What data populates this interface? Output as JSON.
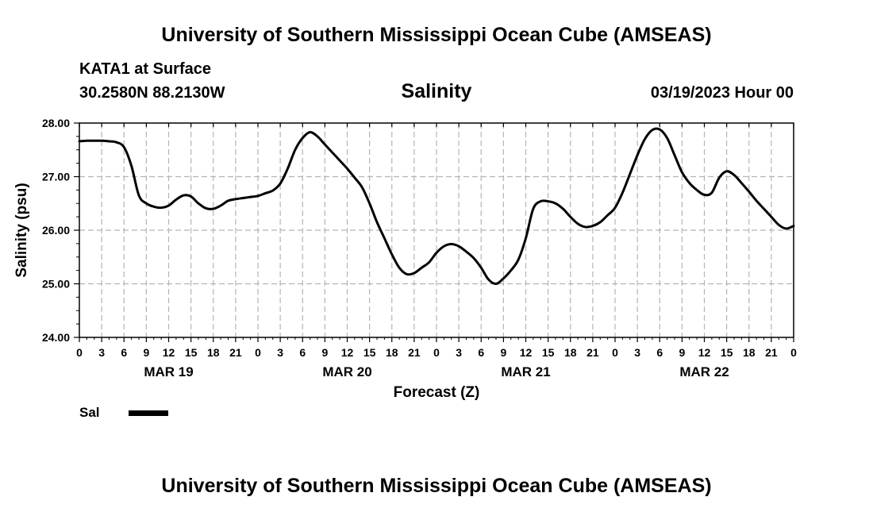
{
  "header": {
    "title": "University of Southern Mississippi Ocean Cube (AMSEAS)",
    "station": "KATA1 at Surface",
    "coords": "30.2580N  88.2130W",
    "variable": "Salinity",
    "run_time": "03/19/2023 Hour 00"
  },
  "footer": {
    "title": "University of Southern Mississippi Ocean Cube (AMSEAS)"
  },
  "legend": {
    "label": "Sal",
    "color": "#000000"
  },
  "chart_data": {
    "type": "line",
    "title": "Salinity",
    "xlabel": "Forecast (Z)",
    "ylabel": "Salinity (psu)",
    "ylim": [
      24.0,
      28.0
    ],
    "xlim": [
      0,
      96
    ],
    "yticks": [
      "24.00",
      "25.00",
      "26.00",
      "27.00",
      "28.00"
    ],
    "xticks": [
      {
        "hour": 0,
        "label": "0"
      },
      {
        "hour": 3,
        "label": "3"
      },
      {
        "hour": 6,
        "label": "6"
      },
      {
        "hour": 9,
        "label": "9"
      },
      {
        "hour": 12,
        "label": "12"
      },
      {
        "hour": 15,
        "label": "15"
      },
      {
        "hour": 18,
        "label": "18"
      },
      {
        "hour": 21,
        "label": "21"
      },
      {
        "hour": 24,
        "label": "0"
      },
      {
        "hour": 27,
        "label": "3"
      },
      {
        "hour": 30,
        "label": "6"
      },
      {
        "hour": 33,
        "label": "9"
      },
      {
        "hour": 36,
        "label": "12"
      },
      {
        "hour": 39,
        "label": "15"
      },
      {
        "hour": 42,
        "label": "18"
      },
      {
        "hour": 45,
        "label": "21"
      },
      {
        "hour": 48,
        "label": "0"
      },
      {
        "hour": 51,
        "label": "3"
      },
      {
        "hour": 54,
        "label": "6"
      },
      {
        "hour": 57,
        "label": "9"
      },
      {
        "hour": 60,
        "label": "12"
      },
      {
        "hour": 63,
        "label": "15"
      },
      {
        "hour": 66,
        "label": "18"
      },
      {
        "hour": 69,
        "label": "21"
      },
      {
        "hour": 72,
        "label": "0"
      },
      {
        "hour": 75,
        "label": "3"
      },
      {
        "hour": 78,
        "label": "6"
      },
      {
        "hour": 81,
        "label": "9"
      },
      {
        "hour": 84,
        "label": "12"
      },
      {
        "hour": 87,
        "label": "15"
      },
      {
        "hour": 90,
        "label": "18"
      },
      {
        "hour": 93,
        "label": "21"
      },
      {
        "hour": 96,
        "label": "0"
      }
    ],
    "day_labels": [
      {
        "hour": 12,
        "label": "MAR 19"
      },
      {
        "hour": 36,
        "label": "MAR 20"
      },
      {
        "hour": 60,
        "label": "MAR 21"
      },
      {
        "hour": 84,
        "label": "MAR 22"
      }
    ],
    "grid": true,
    "series": [
      {
        "name": "Sal",
        "x": [
          0,
          1,
          2,
          3,
          4,
          5,
          6,
          7,
          8,
          9,
          10,
          11,
          12,
          13,
          14,
          15,
          16,
          17,
          18,
          19,
          20,
          21,
          22,
          23,
          24,
          25,
          26,
          27,
          28,
          29,
          30,
          31,
          32,
          33,
          34,
          35,
          36,
          37,
          38,
          39,
          40,
          41,
          42,
          43,
          44,
          45,
          46,
          47,
          48,
          49,
          50,
          51,
          52,
          53,
          54,
          55,
          56,
          57,
          58,
          59,
          60,
          61,
          62,
          63,
          64,
          65,
          66,
          67,
          68,
          69,
          70,
          71,
          72,
          73,
          74,
          75,
          76,
          77,
          78,
          79,
          80,
          81,
          82,
          83,
          84,
          85,
          86,
          87,
          88,
          89,
          90,
          91,
          92,
          93,
          94,
          95,
          96
        ],
        "values": [
          27.66,
          27.67,
          27.67,
          27.67,
          27.66,
          27.64,
          27.55,
          27.2,
          26.65,
          26.5,
          26.44,
          26.42,
          26.46,
          26.57,
          26.65,
          26.63,
          26.5,
          26.41,
          26.4,
          26.46,
          26.55,
          26.58,
          26.6,
          26.62,
          26.64,
          26.69,
          26.74,
          26.87,
          27.15,
          27.5,
          27.72,
          27.83,
          27.75,
          27.6,
          27.45,
          27.3,
          27.15,
          26.98,
          26.8,
          26.5,
          26.15,
          25.85,
          25.55,
          25.3,
          25.18,
          25.2,
          25.3,
          25.4,
          25.58,
          25.7,
          25.74,
          25.7,
          25.6,
          25.48,
          25.3,
          25.08,
          25.0,
          25.1,
          25.25,
          25.45,
          25.85,
          26.4,
          26.54,
          26.54,
          26.5,
          26.4,
          26.25,
          26.12,
          26.06,
          26.08,
          26.15,
          26.28,
          26.42,
          26.7,
          27.05,
          27.4,
          27.7,
          27.87,
          27.88,
          27.72,
          27.4,
          27.08,
          26.88,
          26.75,
          26.66,
          26.7,
          26.98,
          27.1,
          27.03,
          26.88,
          26.72,
          26.55,
          26.4,
          26.25,
          26.1,
          26.03,
          26.08
        ]
      }
    ]
  }
}
